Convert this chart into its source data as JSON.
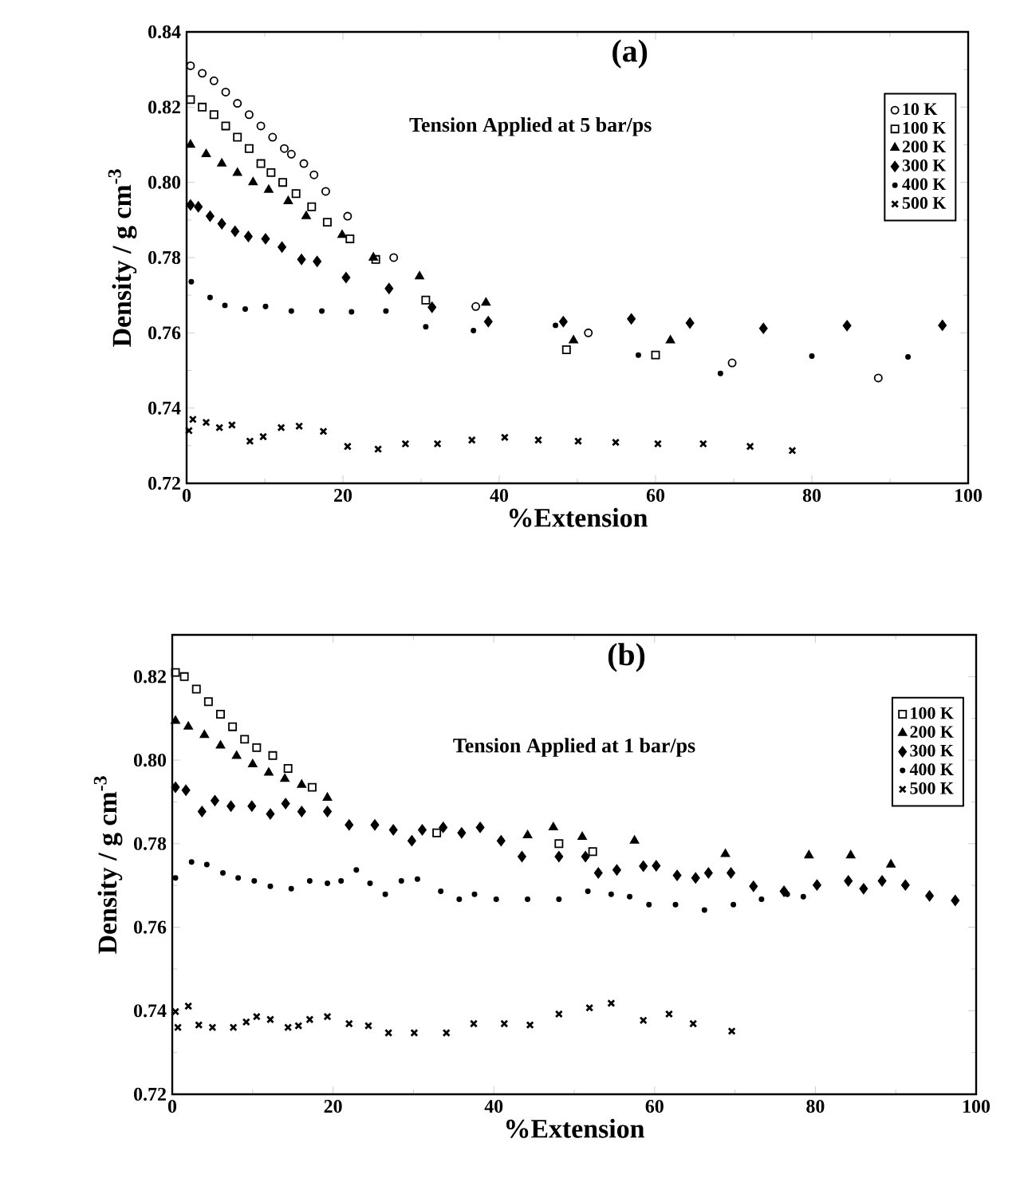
{
  "chart_data": [
    {
      "type": "scatter",
      "title": "(a)",
      "annotations": [
        "Tension Applied at 5 bar/ps"
      ],
      "xlabel": "%Extension",
      "ylabel": "Density / g cm$^{-3}$",
      "xlim": [
        0,
        100
      ],
      "ylim": [
        0.72,
        0.84
      ],
      "xticks": [
        0,
        20,
        40,
        60,
        80,
        100
      ],
      "yticks": [
        0.72,
        0.74,
        0.76,
        0.78,
        {
          "value": 0.8,
          "label": "0.80"
        },
        0.82,
        0.84
      ],
      "legend": "top right",
      "series": [
        {
          "name": "10 K",
          "color": "#000000",
          "marker": "circle",
          "x": [
            0.5,
            2,
            3.5,
            5,
            6.5,
            8,
            9.5,
            11,
            12.5,
            13.4,
            15,
            16.3,
            17.8,
            20.6,
            26.5,
            37,
            51.4,
            69.8,
            88.5
          ],
          "values": [
            0.831,
            0.829,
            0.827,
            0.824,
            0.821,
            0.818,
            0.815,
            0.812,
            0.809,
            0.8075,
            0.805,
            0.802,
            0.7976,
            0.791,
            0.78,
            0.767,
            0.76,
            0.752,
            0.748
          ]
        },
        {
          "name": "100 K",
          "color": "#000000",
          "marker": "square",
          "x": [
            0.5,
            2,
            3.5,
            5,
            6.5,
            8,
            9.5,
            10.8,
            12.3,
            14,
            16,
            18,
            20.9,
            24.2,
            30.6,
            48.6,
            60
          ],
          "values": [
            0.822,
            0.82,
            0.818,
            0.815,
            0.812,
            0.809,
            0.805,
            0.8026,
            0.8,
            0.797,
            0.7935,
            0.7894,
            0.785,
            0.7795,
            0.7687,
            0.7555,
            0.7541
          ]
        },
        {
          "name": "200 K",
          "color": "#000000",
          "marker": "triangle",
          "x": [
            0.5,
            2.5,
            4.5,
            6.5,
            8.5,
            10.5,
            13,
            15.3,
            19.9,
            23.9,
            29.8,
            38.3,
            49.5,
            61.9
          ],
          "values": [
            0.81,
            0.8075,
            0.805,
            0.8025,
            0.8,
            0.798,
            0.795,
            0.791,
            0.786,
            0.78,
            0.775,
            0.768,
            0.758,
            0.758
          ]
        },
        {
          "name": "300 K",
          "color": "#000000",
          "marker": "diamond",
          "x": [
            0.5,
            1.5,
            3,
            4.5,
            6.2,
            7.9,
            10.1,
            12.2,
            14.7,
            16.7,
            20.4,
            25.9,
            31.4,
            38.6,
            48.2,
            56.9,
            64.4,
            73.8,
            84.5,
            96.7
          ],
          "values": [
            0.794,
            0.7935,
            0.791,
            0.789,
            0.787,
            0.7856,
            0.785,
            0.7828,
            0.7795,
            0.779,
            0.7747,
            0.7718,
            0.7668,
            0.763,
            0.763,
            0.7637,
            0.7626,
            0.7612,
            0.7619,
            0.762
          ]
        },
        {
          "name": "400 K",
          "color": "#000000",
          "marker": "dot",
          "x": [
            0.6,
            3,
            4.9,
            7.5,
            10.1,
            13.4,
            17.3,
            21.1,
            25.5,
            30.6,
            36.7,
            47.2,
            57.8,
            68.3,
            80,
            92.3
          ],
          "values": [
            0.7736,
            0.7694,
            0.7673,
            0.7663,
            0.767,
            0.7658,
            0.7658,
            0.7656,
            0.7658,
            0.7616,
            0.7606,
            0.762,
            0.7541,
            0.7492,
            0.7538,
            0.7536
          ]
        },
        {
          "name": "500 K",
          "color": "#000000",
          "marker": "cross",
          "x": [
            0.3,
            0.8,
            2.5,
            4.2,
            5.8,
            8.1,
            9.8,
            12.1,
            14.4,
            17.5,
            20.6,
            24.5,
            28,
            32.1,
            36.5,
            40.7,
            45,
            50.1,
            54.9,
            60.3,
            66.1,
            72.1,
            77.5
          ],
          "values": [
            0.734,
            0.737,
            0.7362,
            0.7348,
            0.7355,
            0.7312,
            0.7324,
            0.7348,
            0.7352,
            0.7338,
            0.7298,
            0.7291,
            0.7305,
            0.7305,
            0.7315,
            0.7322,
            0.7315,
            0.7312,
            0.7309,
            0.7305,
            0.7305,
            0.7298,
            0.7287
          ]
        }
      ]
    },
    {
      "type": "scatter",
      "title": "(b)",
      "annotations": [
        "Tension Applied at 1 bar/ps"
      ],
      "xlabel": "%Extension",
      "ylabel": "Density / g cm$^{-3}$",
      "xlim": [
        0,
        100
      ],
      "ylim": [
        0.72,
        0.83
      ],
      "xticks": [
        0,
        20,
        40,
        60,
        80,
        100
      ],
      "yticks": [
        0.72,
        0.74,
        0.76,
        0.78,
        {
          "value": 0.8,
          "label": "0.80"
        },
        0.82
      ],
      "legend": "top right",
      "series": [
        {
          "name": "100 K",
          "color": "#000000",
          "marker": "square",
          "x": [
            0.4,
            1.5,
            3,
            4.5,
            6,
            7.5,
            9,
            10.5,
            12.5,
            14.4,
            17.4,
            32.9,
            48.1,
            52.3
          ],
          "values": [
            0.821,
            0.82,
            0.817,
            0.814,
            0.811,
            0.808,
            0.805,
            0.803,
            0.8011,
            0.798,
            0.7935,
            0.7826,
            0.78,
            0.7781
          ]
        },
        {
          "name": "200 K",
          "color": "#000000",
          "marker": "triangle",
          "x": [
            0.4,
            2,
            4,
            6,
            8,
            10,
            12,
            14,
            16.1,
            19.3,
            44.2,
            47.4,
            51,
            57.5,
            68.8,
            79.2,
            84.4,
            89.4
          ],
          "values": [
            0.8094,
            0.808,
            0.806,
            0.8035,
            0.801,
            0.799,
            0.797,
            0.7955,
            0.7941,
            0.791,
            0.782,
            0.7839,
            0.7816,
            0.7807,
            0.7775,
            0.7772,
            0.7772,
            0.775
          ]
        },
        {
          "name": "300 K",
          "color": "#000000",
          "marker": "diamond",
          "x": [
            0.4,
            1.7,
            3.7,
            5.3,
            7.3,
            9.9,
            12.2,
            14.1,
            16.1,
            19.3,
            22,
            25.2,
            27.5,
            29.8,
            31.1,
            33.7,
            36,
            38.3,
            40.9,
            43.5,
            48.1,
            51.4,
            53,
            55.3,
            58.6,
            60.2,
            62.8,
            65.1,
            66.7,
            69.5,
            72.3,
            76.1,
            80.2,
            84.1,
            86,
            88.3,
            91.2,
            94.2,
            97.4
          ],
          "values": [
            0.7935,
            0.7928,
            0.7877,
            0.7903,
            0.789,
            0.789,
            0.7871,
            0.7896,
            0.7877,
            0.7877,
            0.7845,
            0.7845,
            0.7833,
            0.7807,
            0.7833,
            0.7839,
            0.7826,
            0.7839,
            0.7807,
            0.7769,
            0.7769,
            0.7769,
            0.773,
            0.7737,
            0.7746,
            0.7747,
            0.7724,
            0.7718,
            0.773,
            0.773,
            0.7698,
            0.7686,
            0.7701,
            0.7711,
            0.7692,
            0.7711,
            0.7701,
            0.7675,
            0.7664
          ]
        },
        {
          "name": "400 K",
          "color": "#000000",
          "marker": "dot",
          "x": [
            0.4,
            2.4,
            4.3,
            6.3,
            8.2,
            10.2,
            12.2,
            14.8,
            17.1,
            19.3,
            21,
            22.9,
            24.6,
            26.5,
            28.5,
            30.5,
            33.4,
            35.7,
            37.6,
            40.3,
            44.2,
            48.1,
            51.7,
            54.6,
            56.9,
            59.3,
            62.6,
            66.2,
            69.8,
            73.3,
            76.5,
            78.5
          ],
          "values": [
            0.7718,
            0.7756,
            0.775,
            0.773,
            0.7718,
            0.7711,
            0.7698,
            0.7692,
            0.7711,
            0.7705,
            0.7711,
            0.7737,
            0.7705,
            0.7679,
            0.7711,
            0.7715,
            0.7686,
            0.7667,
            0.7679,
            0.7667,
            0.7667,
            0.7667,
            0.7686,
            0.7679,
            0.7673,
            0.7654,
            0.7654,
            0.7641,
            0.7654,
            0.7667,
            0.7679,
            0.7673
          ]
        },
        {
          "name": "500 K",
          "color": "#000000",
          "marker": "cross",
          "x": [
            0.4,
            0.7,
            2,
            3.3,
            5,
            7.6,
            9.2,
            10.5,
            12.2,
            14.4,
            15.7,
            17.1,
            19.3,
            22,
            24.4,
            26.9,
            30.1,
            34.1,
            37.5,
            41.3,
            44.5,
            48.1,
            51.9,
            54.6,
            58.6,
            61.8,
            64.8,
            69.6
          ],
          "values": [
            0.7398,
            0.736,
            0.7411,
            0.7366,
            0.736,
            0.736,
            0.7373,
            0.7386,
            0.7379,
            0.736,
            0.7364,
            0.7379,
            0.7386,
            0.7369,
            0.7364,
            0.7347,
            0.7347,
            0.7347,
            0.7369,
            0.7369,
            0.7366,
            0.7392,
            0.7407,
            0.7418,
            0.7377,
            0.7392,
            0.7369,
            0.7351
          ]
        }
      ]
    }
  ]
}
